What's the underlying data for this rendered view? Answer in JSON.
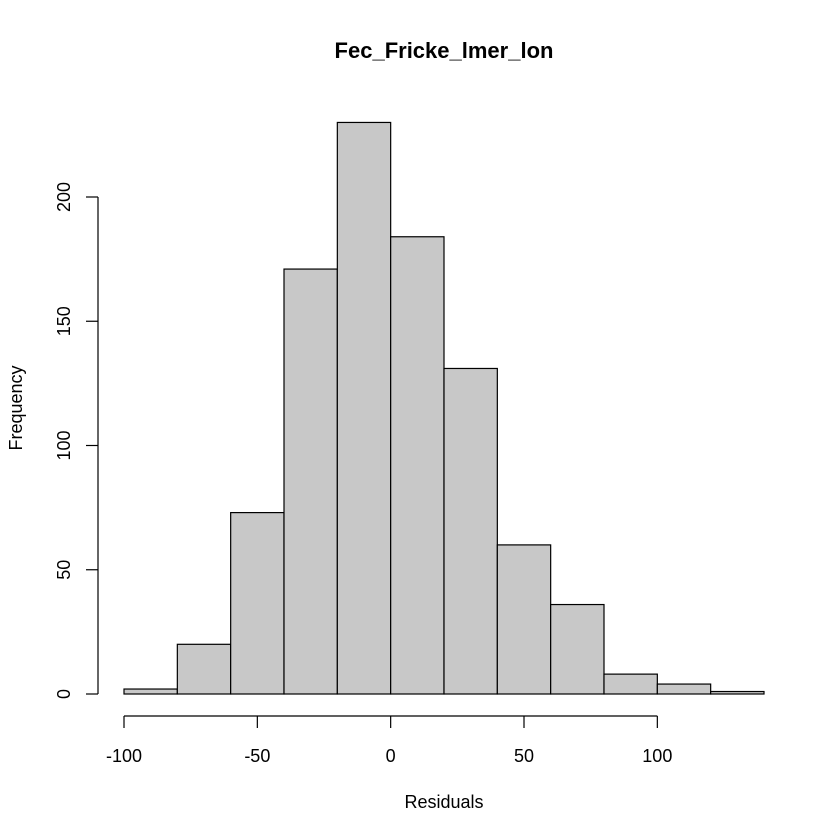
{
  "chart_data": {
    "type": "bar",
    "title": "Fec_Fricke_lmer_lon",
    "xlabel": "Residuals",
    "ylabel": "Frequency",
    "xlim": [
      -100,
      140
    ],
    "ylim": [
      0,
      230
    ],
    "x_ticks": [
      -100,
      -50,
      0,
      50,
      100
    ],
    "x_tick_labels": [
      "-100",
      "-50",
      "0",
      "50",
      "100"
    ],
    "y_ticks": [
      0,
      50,
      100,
      150,
      200
    ],
    "y_tick_labels": [
      "0",
      "50",
      "100",
      "150",
      "200"
    ],
    "grid": false,
    "bins": [
      {
        "start": -100,
        "end": -80,
        "value": 2
      },
      {
        "start": -80,
        "end": -60,
        "value": 20
      },
      {
        "start": -60,
        "end": -40,
        "value": 73
      },
      {
        "start": -40,
        "end": -20,
        "value": 171
      },
      {
        "start": -20,
        "end": 0,
        "value": 230
      },
      {
        "start": 0,
        "end": 20,
        "value": 184
      },
      {
        "start": 20,
        "end": 40,
        "value": 131
      },
      {
        "start": 40,
        "end": 60,
        "value": 60
      },
      {
        "start": 60,
        "end": 80,
        "value": 36
      },
      {
        "start": 80,
        "end": 100,
        "value": 8
      },
      {
        "start": 100,
        "end": 120,
        "value": 4
      },
      {
        "start": 120,
        "end": 140,
        "value": 1
      }
    ],
    "colors": {
      "bar_fill": "#c8c8c8",
      "bar_stroke": "#000000"
    }
  }
}
